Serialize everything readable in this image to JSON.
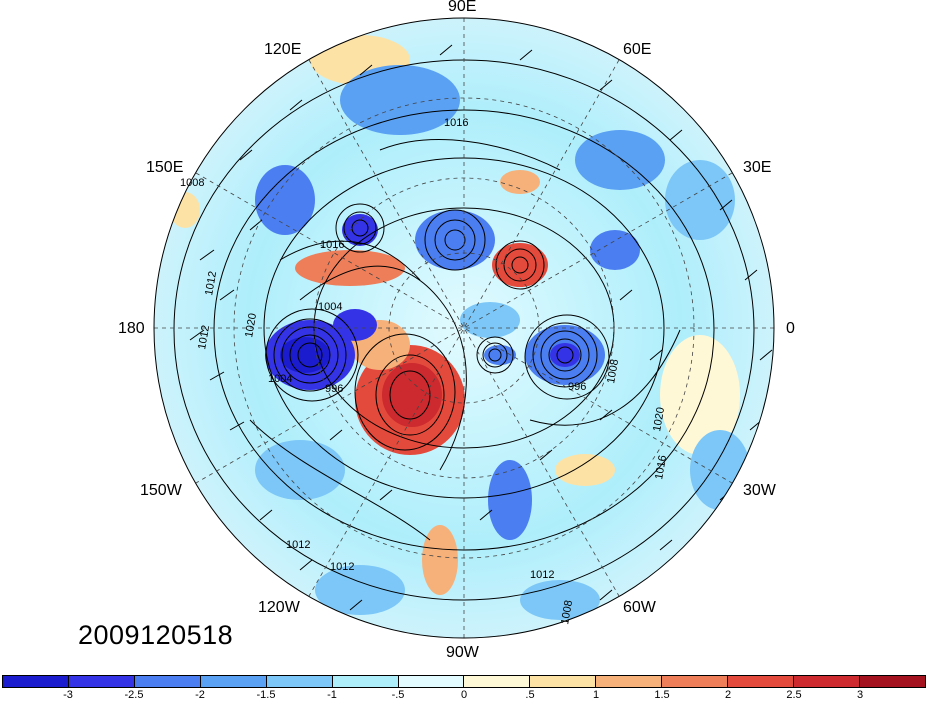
{
  "timestamp": "2009120518",
  "longitude_labels": {
    "lon_90e": "90E",
    "lon_60e": "60E",
    "lon_30e": "30E",
    "lon_0": "0",
    "lon_30w": "30W",
    "lon_60w": "60W",
    "lon_90w": "90W",
    "lon_120w": "120W",
    "lon_150w": "150W",
    "lon_180": "180",
    "lon_150e": "150E",
    "lon_120e": "120E"
  },
  "contour_labels": [
    "1008",
    "1012",
    "1016",
    "1004",
    "996",
    "1020",
    "1012",
    "1016",
    "1008",
    "1012",
    "1012",
    "1016",
    "1004",
    "1012",
    "996",
    "1020",
    "1008"
  ],
  "colorbar": {
    "colors": [
      "#1c1ccf",
      "#3434e6",
      "#4b7ef0",
      "#5aa0f3",
      "#7cc7f7",
      "#aeeefb",
      "#e2fbff",
      "#fff8d6",
      "#fde2a6",
      "#f6b07a",
      "#ee7e5a",
      "#e44a3c",
      "#cc2a2e",
      "#a5121f"
    ],
    "tick_labels": [
      "-3",
      "-2.5",
      "-2",
      "-1.5",
      "-1",
      "-.5",
      "0",
      ".5",
      "1",
      "1.5",
      "2",
      "2.5",
      "3"
    ]
  }
}
